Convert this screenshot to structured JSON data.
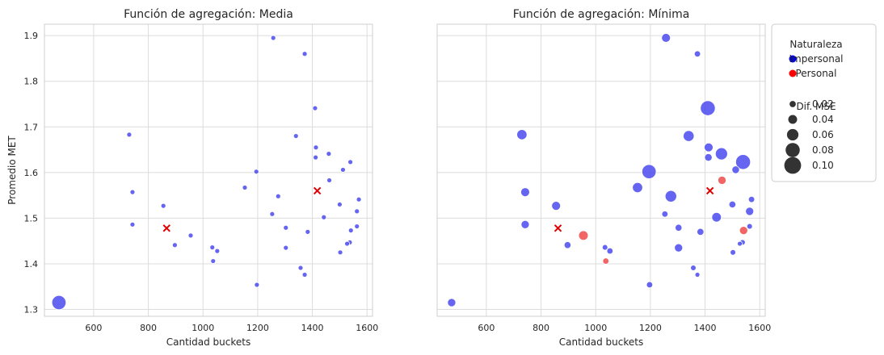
{
  "chart_data": [
    {
      "type": "scatter",
      "title": "Función de agregación: Media",
      "xlabel": "Cantidad buckets",
      "ylabel": "Promedio MET",
      "xlim": [
        420,
        1620
      ],
      "ylim": [
        1.285,
        1.925
      ],
      "xticks": [
        600,
        800,
        1000,
        1200,
        1400,
        1600
      ],
      "yticks": [
        1.3,
        1.4,
        1.5,
        1.6,
        1.7,
        1.8,
        1.9
      ],
      "grid": true,
      "points": [
        {
          "x": 1257,
          "y": 1.895,
          "naturaleza": "Impersonal",
          "dif_mse": 0.01
        },
        {
          "x": 1372,
          "y": 1.86,
          "naturaleza": "Impersonal",
          "dif_mse": 0.01
        },
        {
          "x": 1410,
          "y": 1.741,
          "naturaleza": "Impersonal",
          "dif_mse": 0.01
        },
        {
          "x": 730,
          "y": 1.683,
          "naturaleza": "Impersonal",
          "dif_mse": 0.01
        },
        {
          "x": 1340,
          "y": 1.68,
          "naturaleza": "Impersonal",
          "dif_mse": 0.01
        },
        {
          "x": 1413,
          "y": 1.655,
          "naturaleza": "Impersonal",
          "dif_mse": 0.01
        },
        {
          "x": 1460,
          "y": 1.641,
          "naturaleza": "Impersonal",
          "dif_mse": 0.01
        },
        {
          "x": 1412,
          "y": 1.633,
          "naturaleza": "Impersonal",
          "dif_mse": 0.01
        },
        {
          "x": 1539,
          "y": 1.623,
          "naturaleza": "Impersonal",
          "dif_mse": 0.01
        },
        {
          "x": 1512,
          "y": 1.606,
          "naturaleza": "Impersonal",
          "dif_mse": 0.01
        },
        {
          "x": 1195,
          "y": 1.602,
          "naturaleza": "Impersonal",
          "dif_mse": 0.01
        },
        {
          "x": 1462,
          "y": 1.583,
          "naturaleza": "Impersonal",
          "dif_mse": 0.01
        },
        {
          "x": 1153,
          "y": 1.567,
          "naturaleza": "Impersonal",
          "dif_mse": 0.01
        },
        {
          "x": 742,
          "y": 1.557,
          "naturaleza": "Impersonal",
          "dif_mse": 0.01
        },
        {
          "x": 1275,
          "y": 1.548,
          "naturaleza": "Impersonal",
          "dif_mse": 0.01
        },
        {
          "x": 1570,
          "y": 1.541,
          "naturaleza": "Impersonal",
          "dif_mse": 0.01
        },
        {
          "x": 1500,
          "y": 1.53,
          "naturaleza": "Impersonal",
          "dif_mse": 0.01
        },
        {
          "x": 855,
          "y": 1.527,
          "naturaleza": "Impersonal",
          "dif_mse": 0.01
        },
        {
          "x": 1563,
          "y": 1.515,
          "naturaleza": "Impersonal",
          "dif_mse": 0.01
        },
        {
          "x": 1253,
          "y": 1.509,
          "naturaleza": "Impersonal",
          "dif_mse": 0.01
        },
        {
          "x": 1442,
          "y": 1.502,
          "naturaleza": "Impersonal",
          "dif_mse": 0.01
        },
        {
          "x": 742,
          "y": 1.486,
          "naturaleza": "Impersonal",
          "dif_mse": 0.01
        },
        {
          "x": 1563,
          "y": 1.482,
          "naturaleza": "Impersonal",
          "dif_mse": 0.01
        },
        {
          "x": 1303,
          "y": 1.479,
          "naturaleza": "Impersonal",
          "dif_mse": 0.01
        },
        {
          "x": 1541,
          "y": 1.473,
          "naturaleza": "Impersonal",
          "dif_mse": 0.01
        },
        {
          "x": 1383,
          "y": 1.47,
          "naturaleza": "Impersonal",
          "dif_mse": 0.01
        },
        {
          "x": 955,
          "y": 1.462,
          "naturaleza": "Impersonal",
          "dif_mse": 0.01
        },
        {
          "x": 1537,
          "y": 1.447,
          "naturaleza": "Impersonal",
          "dif_mse": 0.01
        },
        {
          "x": 1527,
          "y": 1.444,
          "naturaleza": "Impersonal",
          "dif_mse": 0.01
        },
        {
          "x": 897,
          "y": 1.441,
          "naturaleza": "Impersonal",
          "dif_mse": 0.01
        },
        {
          "x": 1034,
          "y": 1.436,
          "naturaleza": "Impersonal",
          "dif_mse": 0.01
        },
        {
          "x": 1303,
          "y": 1.435,
          "naturaleza": "Impersonal",
          "dif_mse": 0.01
        },
        {
          "x": 1052,
          "y": 1.428,
          "naturaleza": "Impersonal",
          "dif_mse": 0.01
        },
        {
          "x": 1502,
          "y": 1.425,
          "naturaleza": "Impersonal",
          "dif_mse": 0.01
        },
        {
          "x": 1037,
          "y": 1.406,
          "naturaleza": "Impersonal",
          "dif_mse": 0.01
        },
        {
          "x": 1357,
          "y": 1.391,
          "naturaleza": "Impersonal",
          "dif_mse": 0.01
        },
        {
          "x": 1372,
          "y": 1.376,
          "naturaleza": "Impersonal",
          "dif_mse": 0.01
        },
        {
          "x": 1197,
          "y": 1.354,
          "naturaleza": "Impersonal",
          "dif_mse": 0.01
        },
        {
          "x": 473,
          "y": 1.315,
          "naturaleza": "Impersonal",
          "dif_mse": 0.08
        }
      ],
      "markers": [
        {
          "x": 867,
          "y": 1.478,
          "color": "#e00000"
        },
        {
          "x": 1418,
          "y": 1.56,
          "color": "#e00000"
        }
      ]
    },
    {
      "type": "scatter",
      "title": "Función de agregación: Mínima",
      "xlabel": "Cantidad buckets",
      "xlim": [
        420,
        1620
      ],
      "ylim": [
        1.285,
        1.925
      ],
      "xticks": [
        600,
        800,
        1000,
        1200,
        1400,
        1600
      ],
      "yticks": [
        1.3,
        1.4,
        1.5,
        1.6,
        1.7,
        1.8,
        1.9
      ],
      "grid": true,
      "points": [
        {
          "x": 1257,
          "y": 1.895,
          "naturaleza": "Impersonal",
          "dif_mse": 0.04
        },
        {
          "x": 1372,
          "y": 1.86,
          "naturaleza": "Impersonal",
          "dif_mse": 0.02
        },
        {
          "x": 1410,
          "y": 1.741,
          "naturaleza": "Impersonal",
          "dif_mse": 0.085
        },
        {
          "x": 730,
          "y": 1.683,
          "naturaleza": "Impersonal",
          "dif_mse": 0.05
        },
        {
          "x": 1340,
          "y": 1.68,
          "naturaleza": "Impersonal",
          "dif_mse": 0.055
        },
        {
          "x": 1413,
          "y": 1.655,
          "naturaleza": "Impersonal",
          "dif_mse": 0.04
        },
        {
          "x": 1460,
          "y": 1.641,
          "naturaleza": "Impersonal",
          "dif_mse": 0.065
        },
        {
          "x": 1412,
          "y": 1.633,
          "naturaleza": "Impersonal",
          "dif_mse": 0.03
        },
        {
          "x": 1539,
          "y": 1.623,
          "naturaleza": "Impersonal",
          "dif_mse": 0.085
        },
        {
          "x": 1512,
          "y": 1.606,
          "naturaleza": "Impersonal",
          "dif_mse": 0.03
        },
        {
          "x": 1195,
          "y": 1.602,
          "naturaleza": "Impersonal",
          "dif_mse": 0.08
        },
        {
          "x": 1462,
          "y": 1.583,
          "naturaleza": "Personal",
          "dif_mse": 0.035
        },
        {
          "x": 1153,
          "y": 1.567,
          "naturaleza": "Impersonal",
          "dif_mse": 0.05
        },
        {
          "x": 742,
          "y": 1.557,
          "naturaleza": "Impersonal",
          "dif_mse": 0.04
        },
        {
          "x": 1275,
          "y": 1.548,
          "naturaleza": "Impersonal",
          "dif_mse": 0.06
        },
        {
          "x": 1570,
          "y": 1.541,
          "naturaleza": "Impersonal",
          "dif_mse": 0.02
        },
        {
          "x": 1500,
          "y": 1.53,
          "naturaleza": "Impersonal",
          "dif_mse": 0.025
        },
        {
          "x": 855,
          "y": 1.527,
          "naturaleza": "Impersonal",
          "dif_mse": 0.04
        },
        {
          "x": 1563,
          "y": 1.515,
          "naturaleza": "Impersonal",
          "dif_mse": 0.035
        },
        {
          "x": 1253,
          "y": 1.509,
          "naturaleza": "Impersonal",
          "dif_mse": 0.02
        },
        {
          "x": 1442,
          "y": 1.502,
          "naturaleza": "Impersonal",
          "dif_mse": 0.045
        },
        {
          "x": 742,
          "y": 1.486,
          "naturaleza": "Impersonal",
          "dif_mse": 0.035
        },
        {
          "x": 1563,
          "y": 1.482,
          "naturaleza": "Impersonal",
          "dif_mse": 0.015
        },
        {
          "x": 1303,
          "y": 1.479,
          "naturaleza": "Impersonal",
          "dif_mse": 0.025
        },
        {
          "x": 1541,
          "y": 1.473,
          "naturaleza": "Personal",
          "dif_mse": 0.035
        },
        {
          "x": 1383,
          "y": 1.47,
          "naturaleza": "Impersonal",
          "dif_mse": 0.025
        },
        {
          "x": 955,
          "y": 1.462,
          "naturaleza": "Personal",
          "dif_mse": 0.045
        },
        {
          "x": 1537,
          "y": 1.447,
          "naturaleza": "Impersonal",
          "dif_mse": 0.015
        },
        {
          "x": 1527,
          "y": 1.444,
          "naturaleza": "Impersonal",
          "dif_mse": 0.01
        },
        {
          "x": 897,
          "y": 1.441,
          "naturaleza": "Impersonal",
          "dif_mse": 0.025
        },
        {
          "x": 1034,
          "y": 1.436,
          "naturaleza": "Impersonal",
          "dif_mse": 0.015
        },
        {
          "x": 1303,
          "y": 1.435,
          "naturaleza": "Impersonal",
          "dif_mse": 0.035
        },
        {
          "x": 1052,
          "y": 1.428,
          "naturaleza": "Impersonal",
          "dif_mse": 0.02
        },
        {
          "x": 1502,
          "y": 1.425,
          "naturaleza": "Impersonal",
          "dif_mse": 0.015
        },
        {
          "x": 1037,
          "y": 1.406,
          "naturaleza": "Personal",
          "dif_mse": 0.02
        },
        {
          "x": 1357,
          "y": 1.391,
          "naturaleza": "Impersonal",
          "dif_mse": 0.015
        },
        {
          "x": 1372,
          "y": 1.376,
          "naturaleza": "Impersonal",
          "dif_mse": 0.01
        },
        {
          "x": 1197,
          "y": 1.354,
          "naturaleza": "Impersonal",
          "dif_mse": 0.02
        },
        {
          "x": 473,
          "y": 1.315,
          "naturaleza": "Impersonal",
          "dif_mse": 0.035
        }
      ],
      "markers": [
        {
          "x": 862,
          "y": 1.478,
          "color": "#e00000"
        },
        {
          "x": 1418,
          "y": 1.56,
          "color": "#e00000"
        }
      ]
    }
  ],
  "legend": {
    "placement": "right",
    "hue_title": "Naturaleza",
    "hue_items": [
      {
        "label": "Impersonal",
        "color": "#0000ff"
      },
      {
        "label": "Personal",
        "color": "#ff0000"
      }
    ],
    "size_title": "Dif. MSE",
    "size_items": [
      {
        "label": "0.02",
        "value": 0.02
      },
      {
        "label": "0.04",
        "value": 0.04
      },
      {
        "label": "0.06",
        "value": 0.06
      },
      {
        "label": "0.08",
        "value": 0.08
      },
      {
        "label": "0.10",
        "value": 0.1
      }
    ]
  },
  "colors": {
    "Impersonal": "#4a4af0",
    "Personal": "#f04a4a",
    "marker_x": "#e00000"
  }
}
